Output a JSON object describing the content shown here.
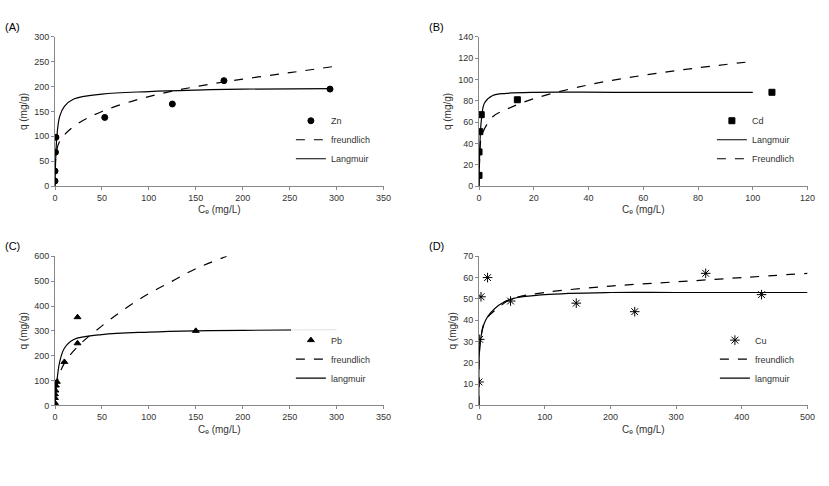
{
  "chart_data": [
    {
      "type": "scatter",
      "title": "(A)",
      "xlabel": "Cₑ (mg/L)",
      "ylabel": "q (mg/g)",
      "xlim": [
        0,
        350
      ],
      "xticks": [
        0,
        50,
        100,
        150,
        200,
        250,
        300,
        350
      ],
      "ylim": [
        0,
        300
      ],
      "yticks": [
        0,
        50,
        100,
        150,
        200,
        250,
        300
      ],
      "grid": false,
      "legend": "lower right",
      "series": [
        {
          "name": "Zn",
          "type": "scatter",
          "marker": "circle",
          "color": "#000000",
          "x": [
            0,
            0,
            0.5,
            1,
            53,
            125,
            180,
            293
          ],
          "values": [
            10,
            30,
            68,
            98,
            138,
            165,
            212,
            195
          ]
        },
        {
          "name": "freundlich",
          "type": "line",
          "line_style": "dashed",
          "color": "#000000",
          "x": [
            0,
            1,
            5,
            20,
            50,
            100,
            150,
            200,
            250,
            295
          ],
          "values": [
            0,
            60,
            90,
            120,
            150,
            180,
            200,
            215,
            228,
            240
          ]
        },
        {
          "name": "Langmuir",
          "type": "line",
          "line_style": "solid",
          "color": "#000000",
          "x": [
            0,
            2,
            5,
            10,
            20,
            50,
            100,
            150,
            200,
            295
          ],
          "values": [
            0,
            100,
            140,
            160,
            175,
            185,
            190,
            193,
            195,
            196
          ]
        }
      ]
    },
    {
      "type": "scatter",
      "title": "(B)",
      "xlabel": "Cₑ (mg/L)",
      "ylabel": "q (mg/g)",
      "xlim": [
        0,
        120
      ],
      "xticks": [
        0,
        20,
        40,
        60,
        80,
        100,
        120
      ],
      "ylim": [
        0,
        140
      ],
      "yticks": [
        0,
        20,
        40,
        60,
        80,
        100,
        120,
        140
      ],
      "grid": false,
      "legend": "lower right",
      "series": [
        {
          "name": "Cd",
          "type": "scatter",
          "marker": "square",
          "color": "#000000",
          "x": [
            0,
            0,
            0.3,
            0.8,
            14,
            107
          ],
          "values": [
            10,
            32,
            51,
            67,
            81,
            88
          ]
        },
        {
          "name": "Langmuir",
          "type": "line",
          "line_style": "solid",
          "color": "#000000",
          "x": [
            0,
            0.5,
            1,
            2,
            5,
            10,
            20,
            50,
            100
          ],
          "values": [
            0,
            50,
            65,
            78,
            85,
            87,
            88,
            88,
            88
          ]
        },
        {
          "name": "Freundlich",
          "type": "line",
          "line_style": "dashed",
          "color": "#000000",
          "x": [
            0,
            0.5,
            1,
            5,
            10,
            20,
            40,
            60,
            80,
            100
          ],
          "values": [
            0,
            40,
            48,
            65,
            72,
            82,
            95,
            104,
            111,
            117
          ]
        }
      ]
    },
    {
      "type": "scatter",
      "title": "(C)",
      "xlabel": "Cₑ (mg/L)",
      "ylabel": "q (mg/g)",
      "xlim": [
        0,
        350
      ],
      "xticks": [
        0,
        50,
        100,
        150,
        200,
        250,
        300,
        350
      ],
      "ylim": [
        0,
        600
      ],
      "yticks": [
        0,
        100,
        200,
        300,
        400,
        500,
        600
      ],
      "grid": false,
      "legend": "lower right",
      "series": [
        {
          "name": "Pb",
          "type": "scatter",
          "marker": "triangle-up",
          "color": "#000000",
          "x": [
            0,
            0,
            0,
            0.5,
            1,
            2,
            10,
            24,
            24,
            150
          ],
          "values": [
            10,
            30,
            45,
            60,
            80,
            95,
            175,
            250,
            355,
            300
          ]
        },
        {
          "name": "freundlich",
          "type": "line",
          "line_style": "dashed",
          "color": "#000000",
          "x": [
            0,
            2,
            10,
            25,
            50,
            75,
            100,
            125,
            150,
            183
          ],
          "values": [
            0,
            90,
            170,
            240,
            320,
            390,
            450,
            500,
            550,
            600
          ]
        },
        {
          "name": "langmuir",
          "type": "line",
          "line_style": "solid",
          "color": "#000000",
          "x": [
            0,
            2,
            5,
            10,
            20,
            50,
            100,
            150,
            200,
            300
          ],
          "values": [
            0,
            95,
            175,
            230,
            265,
            285,
            295,
            300,
            302,
            305
          ]
        }
      ]
    },
    {
      "type": "scatter",
      "title": "(D)",
      "xlabel": "Cₑ (mg/L)",
      "ylabel": "q (mg/g)",
      "xlim": [
        0,
        500
      ],
      "xticks": [
        0,
        100,
        200,
        300,
        400,
        500
      ],
      "ylim": [
        0,
        70
      ],
      "yticks": [
        0,
        10,
        20,
        30,
        40,
        50,
        60,
        70
      ],
      "grid": false,
      "legend": "lower right",
      "series": [
        {
          "name": "Cu",
          "type": "scatter",
          "marker": "asterisk",
          "color": "#000000",
          "x": [
            0,
            1,
            3,
            13,
            48,
            148,
            237,
            345,
            430
          ],
          "values": [
            11,
            31,
            51,
            60,
            49,
            48,
            44,
            62,
            52
          ]
        },
        {
          "name": "freundlich",
          "type": "line",
          "line_style": "dashed",
          "color": "#000000",
          "x": [
            0,
            2,
            10,
            30,
            50,
            100,
            200,
            300,
            400,
            500
          ],
          "values": [
            0,
            30,
            40,
            46,
            50,
            53,
            56,
            58,
            60,
            62
          ]
        },
        {
          "name": "langmuir",
          "type": "line",
          "line_style": "solid",
          "color": "#000000",
          "x": [
            0,
            2,
            10,
            30,
            50,
            100,
            200,
            300,
            500
          ],
          "values": [
            0,
            30,
            40,
            47,
            50,
            52,
            53,
            53,
            53
          ]
        }
      ]
    }
  ]
}
